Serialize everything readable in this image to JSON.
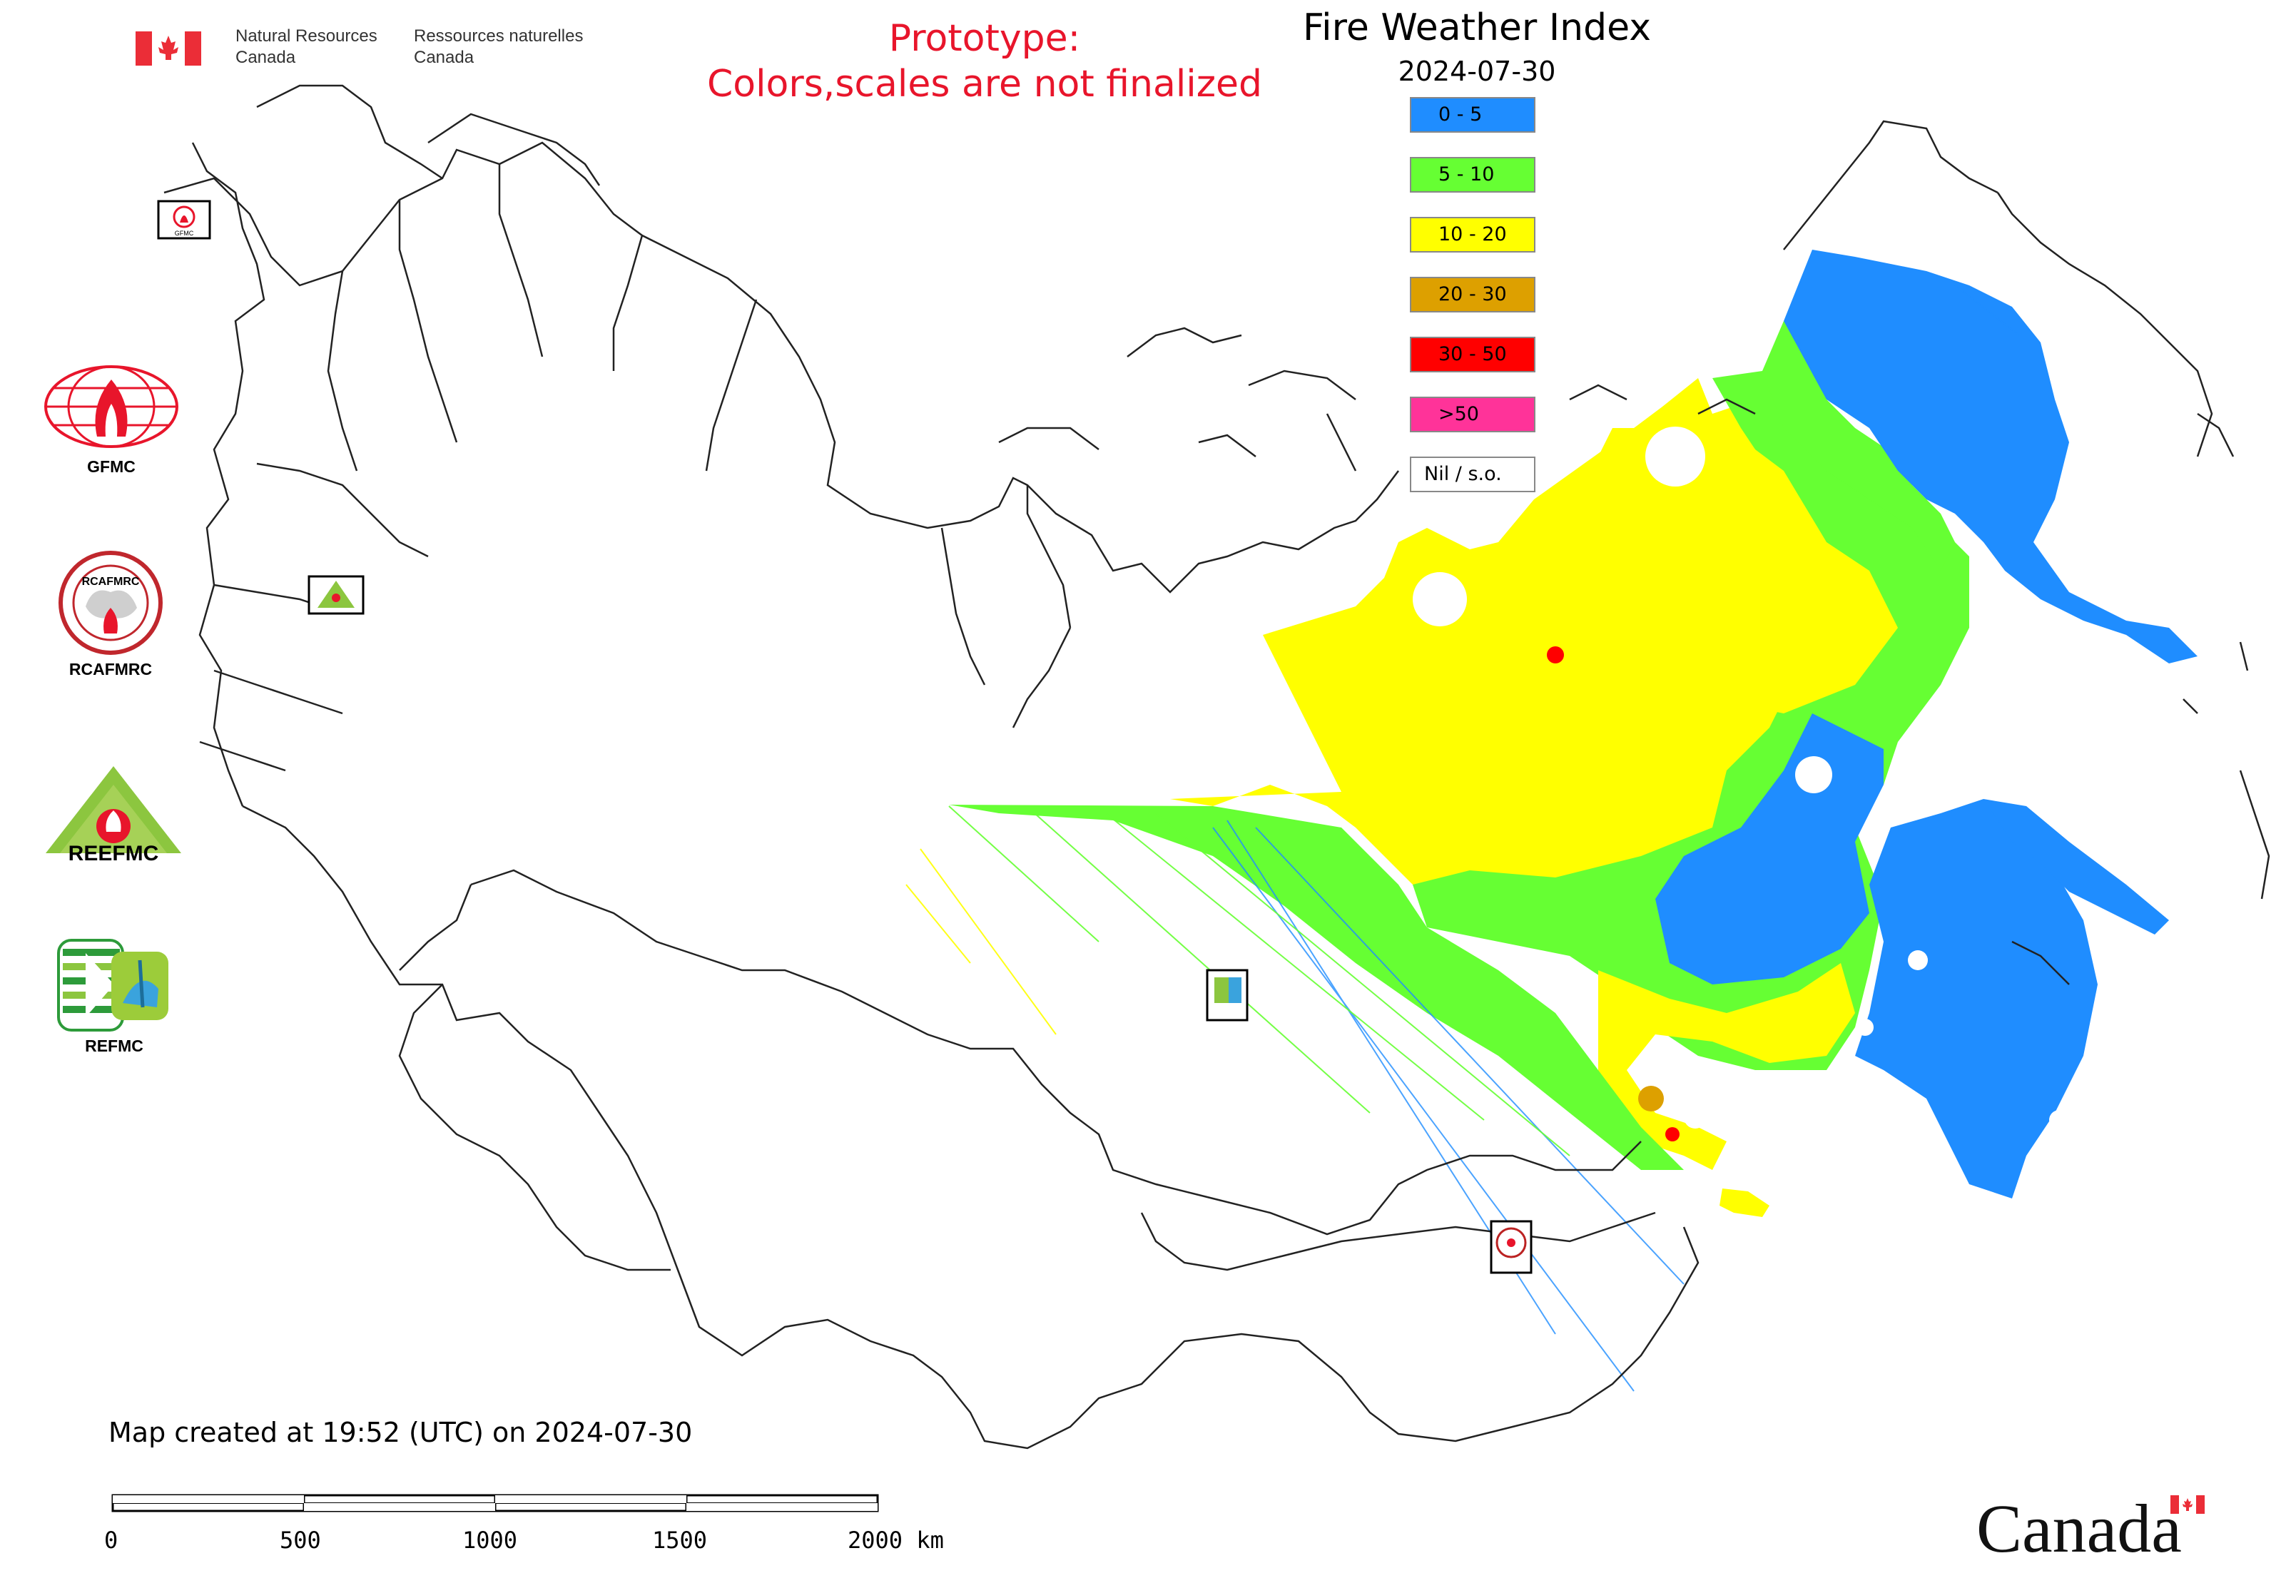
{
  "header": {
    "nrcan_en": [
      "Natural Resources",
      "Canada"
    ],
    "nrcan_fr": [
      "Ressources naturelles",
      "Canada"
    ],
    "prototype_notice": [
      "Prototype:",
      "Colors,scales are not finalized"
    ],
    "map_title": "Fire Weather Index",
    "map_date": "2024-07-30"
  },
  "legend": {
    "items": [
      {
        "label": "0 - 5",
        "color": "#1f8dff"
      },
      {
        "label": "5 - 10",
        "color": "#66ff33"
      },
      {
        "label": "10 - 20",
        "color": "#ffff00"
      },
      {
        "label": "20 - 30",
        "color": "#dda000"
      },
      {
        "label": "30 - 50",
        "color": "#ff0000"
      },
      {
        "label": ">50",
        "color": "#ff3399"
      },
      {
        "label": "Nil / s.o.",
        "color": "#ffffff"
      }
    ]
  },
  "partners": [
    {
      "label": "GFMC",
      "icon": "gfmc-logo-icon"
    },
    {
      "label": "RCAFMRC",
      "icon": "rcafmrc-logo-icon"
    },
    {
      "label": "REEFMC",
      "icon": "reefmc-logo-icon"
    },
    {
      "label": "REFMC",
      "icon": "refmc-logo-icon"
    }
  ],
  "partner_logo_texts": {
    "reefmc_text": "REEFMC",
    "rcafmrc_text": "RCAFMRC"
  },
  "map_markers": [
    {
      "name": "gfmc-marker",
      "label": "GFMC"
    },
    {
      "name": "reefmc-marker",
      "label": "REEFMC"
    },
    {
      "name": "refmc-marker",
      "label": "REFMC"
    },
    {
      "name": "rcafmrc-marker",
      "label": "RCAFMRC"
    }
  ],
  "footer": {
    "created": "Map created at 19:52 (UTC) on 2024-07-30",
    "scale_labels": [
      "0",
      "500",
      "1000",
      "1500",
      "2000 km"
    ],
    "canada_wordmark": "Canada"
  },
  "colors": {
    "prototype_red": "#e8152b",
    "fwi_blue": "#1f8dff",
    "fwi_green": "#66ff33",
    "fwi_yellow": "#ffff00",
    "fwi_orange": "#dda000",
    "fwi_red": "#ff0000",
    "canada_flag_red": "#eb2d37"
  }
}
